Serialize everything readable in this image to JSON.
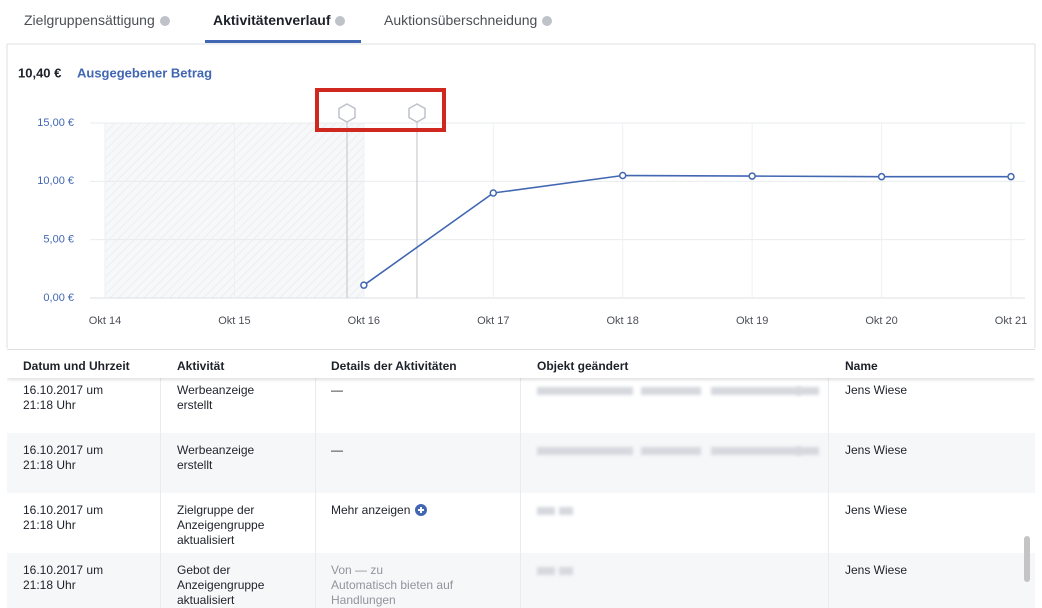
{
  "tabs": [
    {
      "label": "Zielgruppensättigung"
    },
    {
      "label": "Aktivitätenverlauf"
    },
    {
      "label": "Auktionsüberschneidung"
    }
  ],
  "summary": {
    "amount": "10,40 €",
    "label": "Ausgegebener Betrag"
  },
  "chart_data": {
    "type": "line",
    "categories": [
      "Okt 14",
      "Okt 15",
      "Okt 16",
      "Okt 17",
      "Okt 18",
      "Okt 19",
      "Okt 20",
      "Okt 21"
    ],
    "series": [
      {
        "name": "Ausgegebener Betrag",
        "color": "#4267b2",
        "values": [
          null,
          null,
          1.1,
          9.0,
          10.5,
          10.45,
          10.4,
          10.4
        ]
      }
    ],
    "ylim": [
      0,
      15
    ],
    "yticks": [
      {
        "value": 0,
        "label": "0,00 €"
      },
      {
        "value": 5,
        "label": "5,00 €"
      },
      {
        "value": 10,
        "label": "10,00 €"
      },
      {
        "value": 15,
        "label": "15,00 €"
      }
    ],
    "grid": true
  },
  "table": {
    "headers": [
      "Datum und Uhrzeit",
      "Aktivität",
      "Details der Aktivitäten",
      "Objekt geändert",
      "Name"
    ],
    "rows": [
      {
        "date": "16.10.2017 um\n21:18 Uhr",
        "activity": "Werbeanzeige\nerstellt",
        "details": "—",
        "name": "Jens Wiese"
      },
      {
        "date": "16.10.2017 um\n21:18 Uhr",
        "activity": "Werbeanzeige\nerstellt",
        "details": "—",
        "name": "Jens Wiese"
      },
      {
        "date": "16.10.2017 um\n21:18 Uhr",
        "activity": "Zielgruppe der\nAnzeigengruppe\naktualisiert",
        "details": "Mehr anzeigen",
        "name": "Jens Wiese"
      },
      {
        "date": "16.10.2017 um\n21:18 Uhr",
        "activity": "Gebot der\nAnzeigengruppe\naktualisiert",
        "details": "Von — zu\nAutomatisch bieten auf\nHandlungen",
        "name": "Jens Wiese"
      }
    ]
  }
}
